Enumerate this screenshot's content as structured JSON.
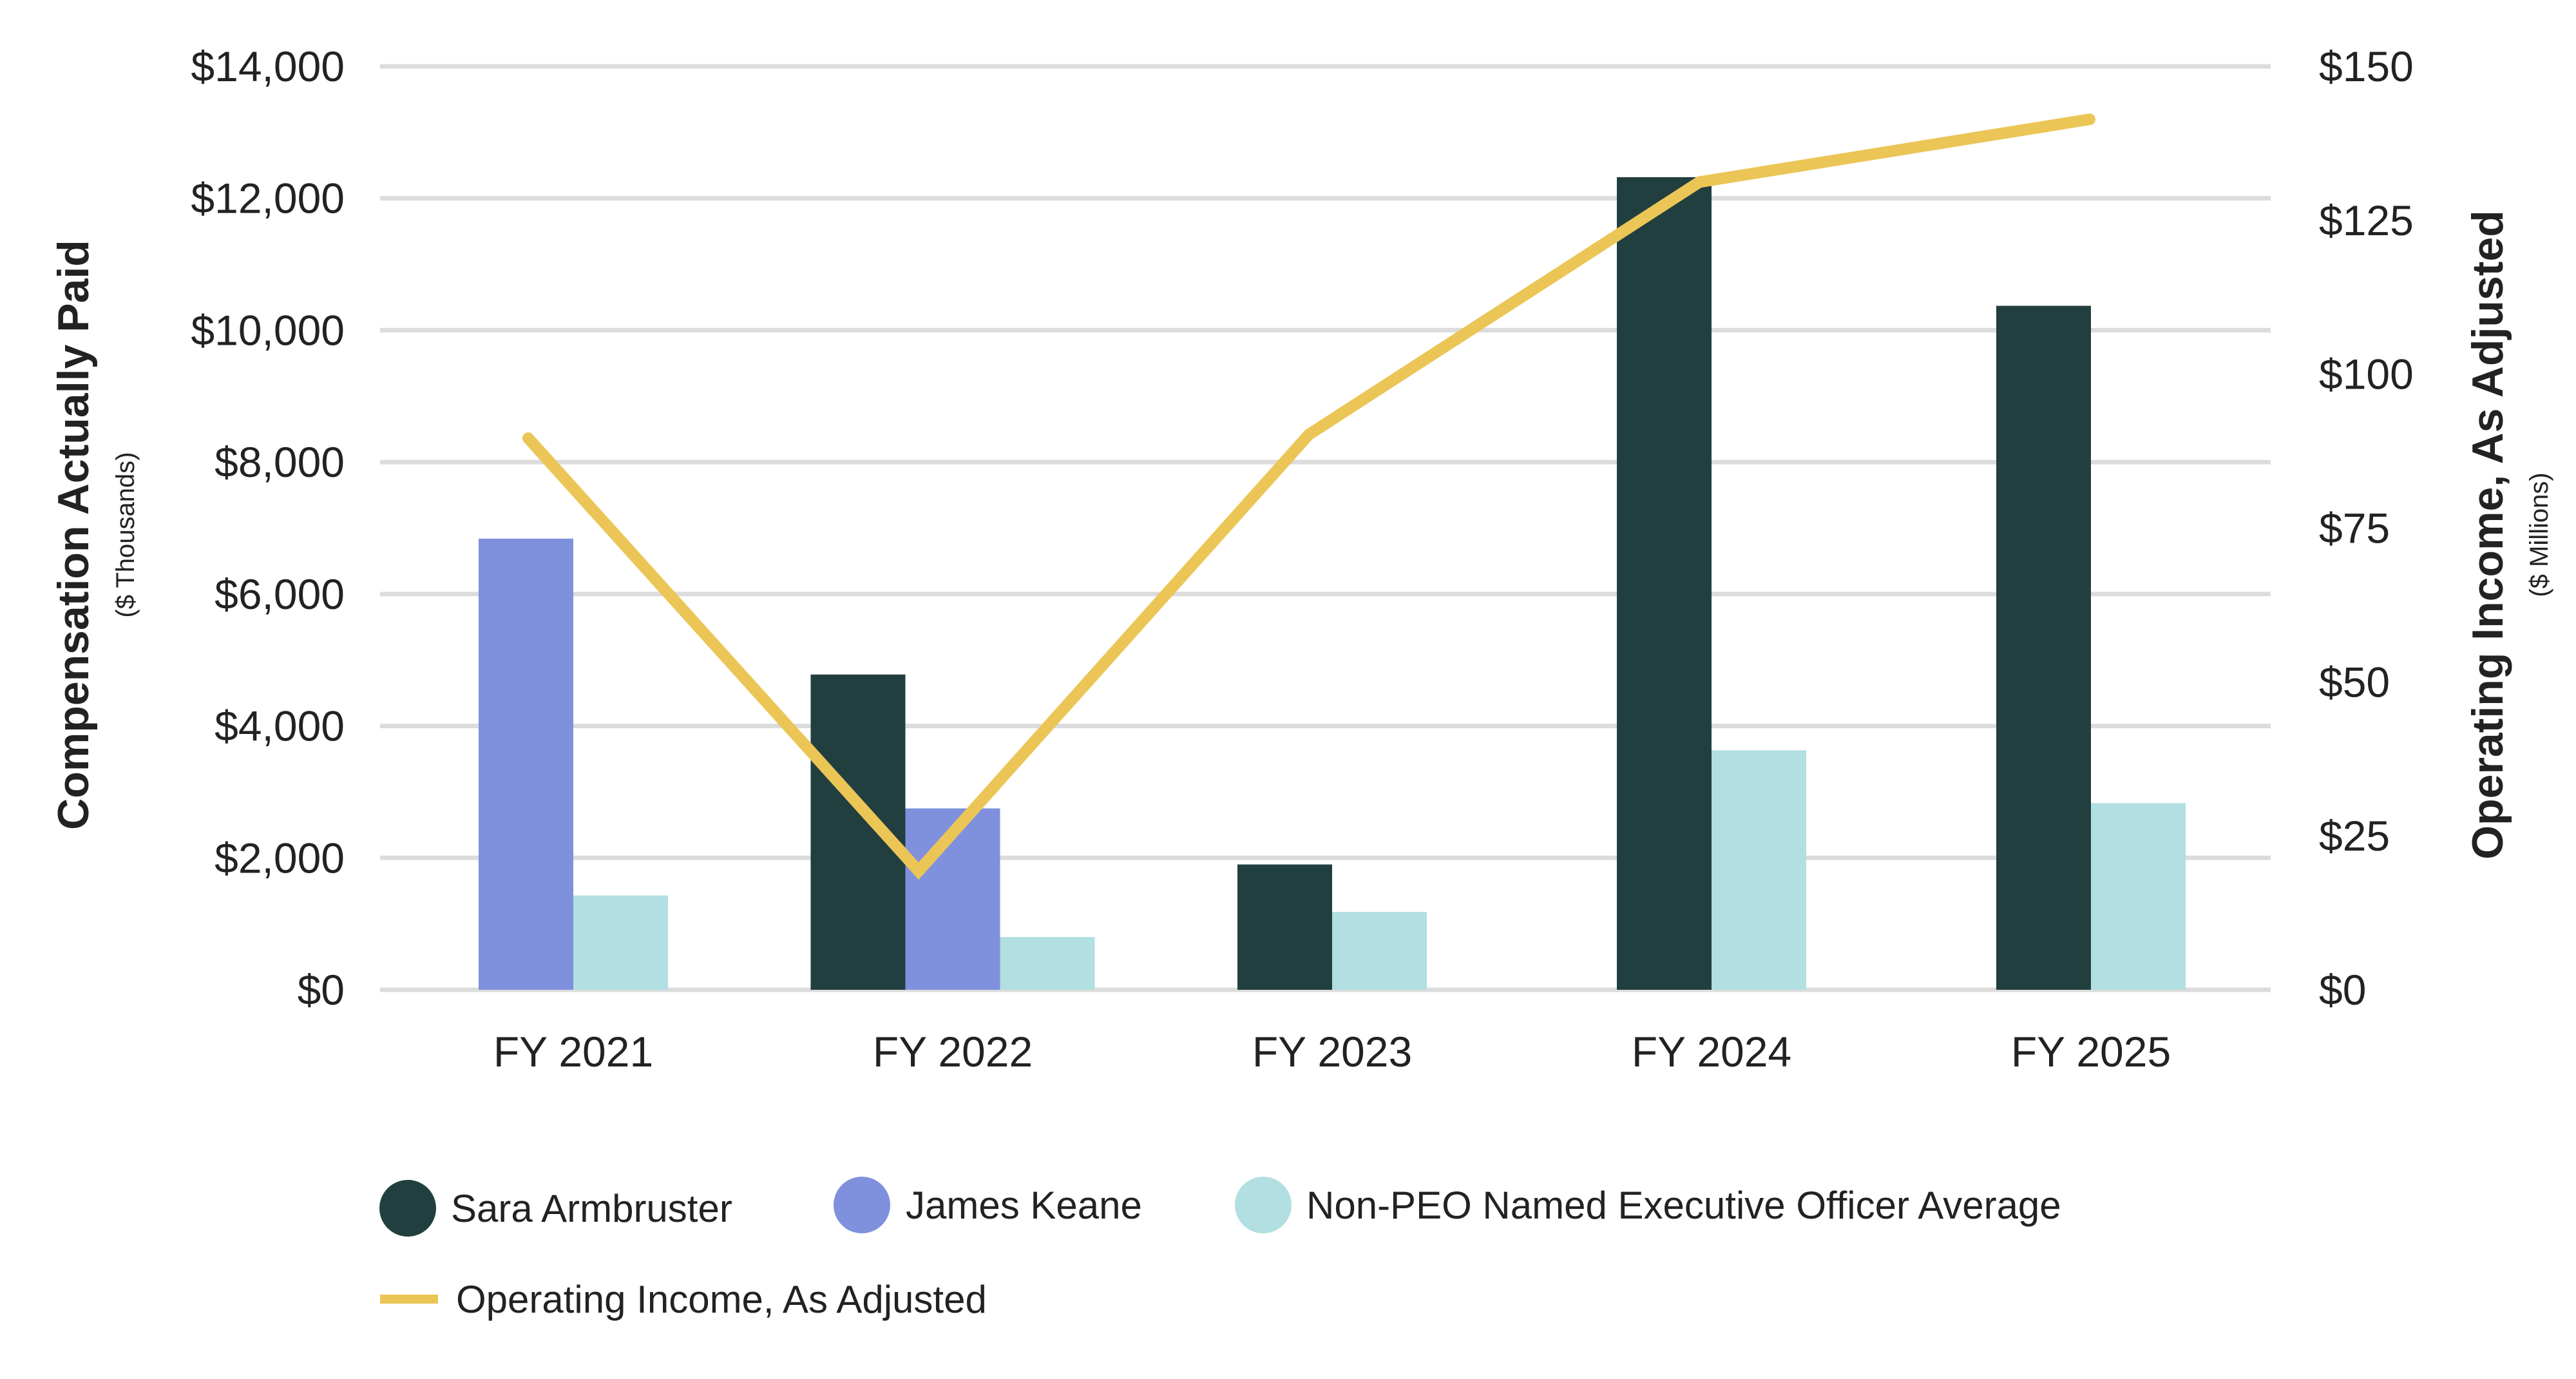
{
  "chart_data": {
    "type": "bar",
    "categories": [
      "FY 2021",
      "FY 2022",
      "FY 2023",
      "FY 2024",
      "FY 2025"
    ],
    "y_left": {
      "title": "Compensation Actually Paid",
      "subtitle": "($ Thousands)",
      "ylim": [
        0,
        14000
      ],
      "ticks": [
        "$0",
        "$2,000",
        "$4,000",
        "$6,000",
        "$8,000",
        "$10,000",
        "$12,000",
        "$14,000"
      ],
      "tick_values": [
        0,
        2000,
        4000,
        6000,
        8000,
        10000,
        12000,
        14000
      ]
    },
    "y_right": {
      "title": "Operating Income, As Adjusted",
      "subtitle": "($ Millions)",
      "ylim": [
        0,
        150
      ],
      "ticks": [
        "$0",
        "$25",
        "$50",
        "$75",
        "$100",
        "$125",
        "$150"
      ],
      "tick_values": [
        0,
        25,
        50,
        75,
        100,
        125,
        150
      ]
    },
    "grid": true,
    "legend_position": "bottom-left",
    "series": [
      {
        "name": "Sara Armbruster",
        "type": "bar",
        "axis": "left",
        "color": "#223f3f",
        "values": [
          null,
          4780,
          1900,
          12320,
          10370
        ]
      },
      {
        "name": "James Keane",
        "type": "bar",
        "axis": "left",
        "color": "#7f91dd",
        "values": [
          6840,
          2750,
          null,
          null,
          null
        ]
      },
      {
        "name": "Non-PEO Named Executive Officer Average",
        "type": "bar",
        "axis": "left",
        "color": "#b2dfe1",
        "values": [
          1430,
          800,
          1180,
          3630,
          2830
        ]
      },
      {
        "name": "Operating Income, As Adjusted",
        "type": "line",
        "axis": "right",
        "color": "#ebc556",
        "values": [
          89.6,
          19.3,
          90.2,
          131.2,
          141.4
        ]
      }
    ]
  }
}
